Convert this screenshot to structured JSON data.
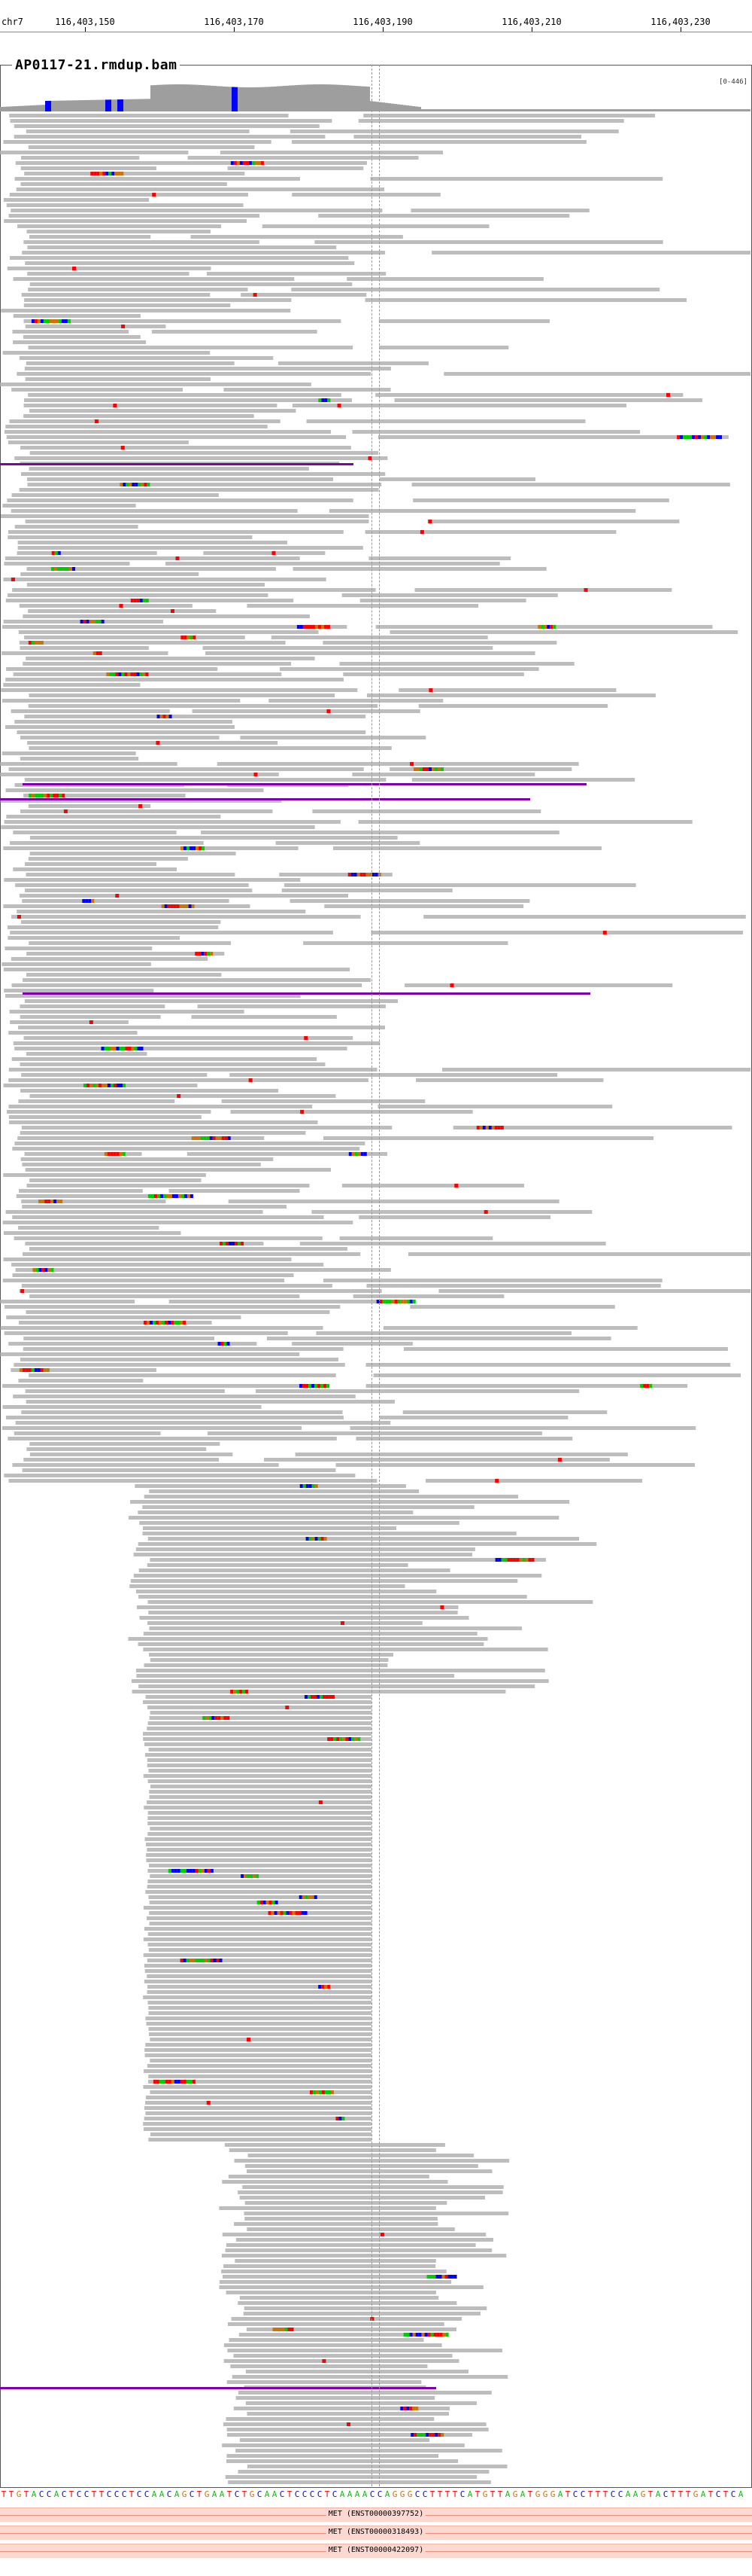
{
  "ruler": {
    "chrom": "chr7",
    "ticks": [
      "116,403,150",
      "116,403,170",
      "116,403,190",
      "116,403,210",
      "116,403,230"
    ]
  },
  "track": {
    "title": "AP0117-21.rmdup.bam",
    "badge": "[0-446]"
  },
  "sequence": "TTGTACCACTCCTTCCCTCCAACAGCTGAATCTGCAACTCCCCTCAAAACCAGGGCCTTTTCATGTTAGATGGGATCCTTTCCAAGTACTTTGATCTCA",
  "genes": [
    {
      "label": "MET (ENST00000397752)"
    },
    {
      "label": "MET (ENST00000318493)"
    },
    {
      "label": "MET (ENST00000422097)"
    }
  ],
  "colors": {
    "read": "#bdbdbd",
    "A": "#00cc00",
    "C": "#0000ff",
    "G": "#d17105",
    "T": "#ff0000",
    "insertion": "#8000b0"
  }
}
